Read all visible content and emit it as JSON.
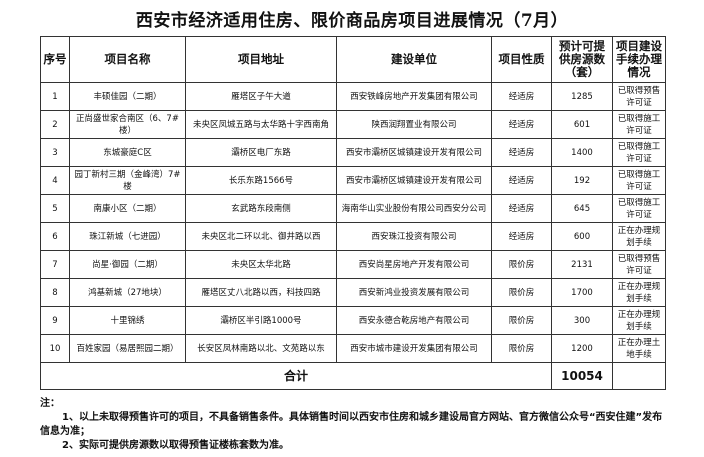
{
  "title": "西安市经济适用住房、限价商品房项目进展情况（7月）",
  "headers": [
    "序号",
    "项目名称",
    "项目地址",
    "建设单位",
    "项目性质",
    "预计可提供房源数（套）",
    "项目建设手续办理情况"
  ],
  "rows": [
    [
      "1",
      "丰硕佳园（二期）",
      "雁塔区子午大道",
      "西安铁峰房地产开发集团有限公司",
      "经适房",
      "1285",
      "已取得预售许可证"
    ],
    [
      "2",
      "正尚盛世家合南区（6、7#楼）",
      "未央区凤城五路与太华路十字西南角",
      "陕西润翔置业有限公司",
      "经适房",
      "601",
      "已取得施工许可证"
    ],
    [
      "3",
      "东城豪庭C区",
      "灞桥区电厂东路",
      "西安市灞桥区城镇建设开发有限公司",
      "经适房",
      "1400",
      "已取得施工许可证"
    ],
    [
      "4",
      "园丁新村三期（金峰湾）7#楼",
      "长乐东路1566号",
      "西安市灞桥区城镇建设开发有限公司",
      "经适房",
      "192",
      "已取得施工许可证"
    ],
    [
      "5",
      "南康小区（二期）",
      "玄武路东段南侧",
      "海南华山实业股份有限公司西安分公司",
      "经适房",
      "645",
      "已取得施工许可证"
    ],
    [
      "6",
      "珠江新城（七进园）",
      "未央区北二环以北、御井路以西",
      "西安珠江投资有限公司",
      "经适房",
      "600",
      "正在办理规划手续"
    ],
    [
      "7",
      "尚星·御园（二期）",
      "未央区太华北路",
      "西安尚星房地产开发有限公司",
      "限价房",
      "2131",
      "已取得预售许可证"
    ],
    [
      "8",
      "鸿基新城（27地块）",
      "雁塔区丈八北路以西，科技四路",
      "西安新鸿业投资发展有限公司",
      "限价房",
      "1700",
      "正在办理规划手续"
    ],
    [
      "9",
      "十里锦绣",
      "灞桥区半引路1000号",
      "西安永德合乾房地产有限公司",
      "限价房",
      "300",
      "正在办理规划手续"
    ],
    [
      "10",
      "百姓家园（易居熙园二期）",
      "长安区凤林南路以北、文苑路以东",
      "西安市城市建设开发集团有限公司",
      "限价房",
      "1200",
      "正在办理土地手续"
    ]
  ],
  "total": {
    "label": "合计",
    "value": "10054"
  },
  "notes": {
    "heading": "注：",
    "line1": "1、以上未取得预售许可的项目，不具备销售条件。具体销售时间以西安市住房和城乡建设局官方网站、官方微信公众号“西安住建”发布信息为准；",
    "line2": "2、实际可提供房源数以取得预售证楼栋套数为准。"
  }
}
